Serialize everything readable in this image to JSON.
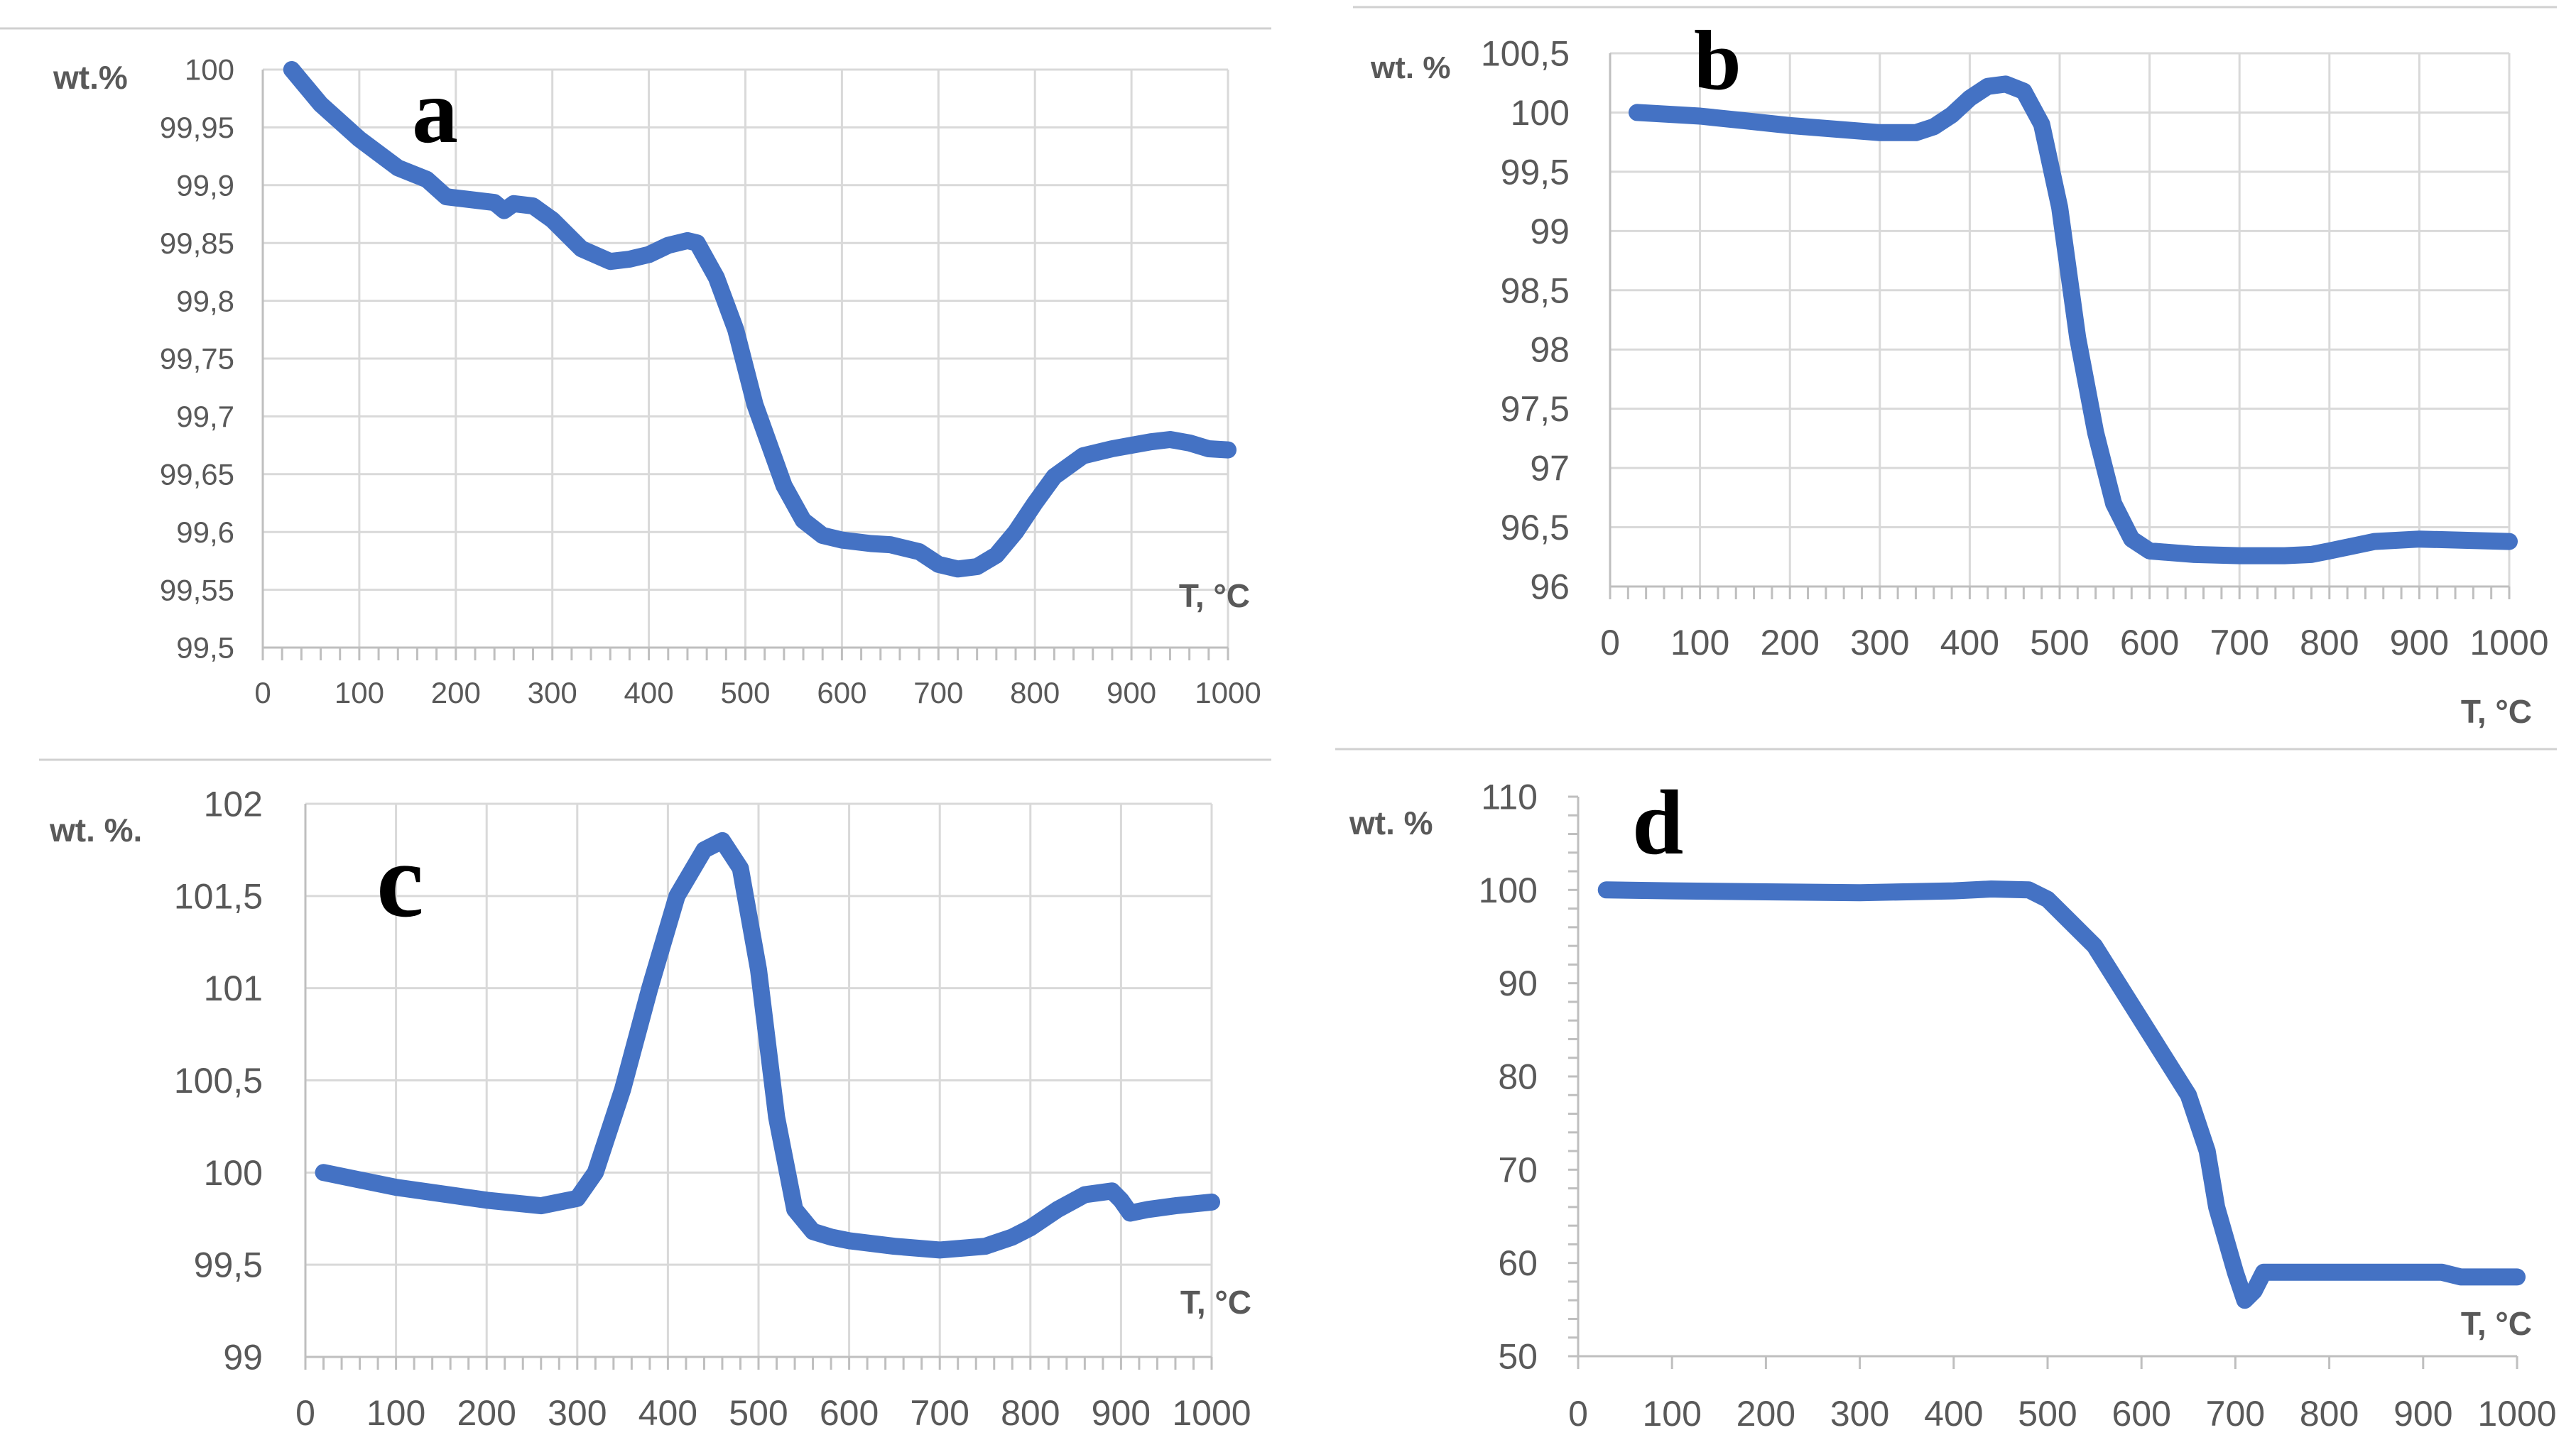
{
  "colors": {
    "series": "#4472C4",
    "grid": "#d9d9d9",
    "axis": "#bfbfbf",
    "text": "#595959",
    "separator": "#d0d0d0"
  },
  "chart_data": [
    {
      "panel": "a",
      "type": "line",
      "ylabel": "wt.%",
      "xlabel": "T, °C",
      "xlim": [
        0,
        1000
      ],
      "ylim": [
        99.5,
        100
      ],
      "xticks": [
        "0",
        "100",
        "200",
        "300",
        "400",
        "500",
        "600",
        "700",
        "800",
        "900",
        "1000"
      ],
      "yticks": [
        "99,5",
        "99,55",
        "99,6",
        "99,65",
        "99,7",
        "99,75",
        "99,8",
        "99,85",
        "99,9",
        "99,95",
        "100"
      ],
      "grid": "vertical and horizontal",
      "series": [
        {
          "x": [
            30,
            60,
            100,
            140,
            170,
            190,
            210,
            240,
            250,
            260,
            280,
            300,
            330,
            360,
            380,
            400,
            420,
            440,
            450,
            470,
            490,
            510,
            540,
            560,
            580,
            600,
            630,
            650,
            680,
            700,
            720,
            740,
            760,
            780,
            800,
            820,
            850,
            880,
            900,
            920,
            940,
            960,
            980,
            1000
          ],
          "values": [
            100,
            99.97,
            99.94,
            99.915,
            99.905,
            99.89,
            99.888,
            99.885,
            99.878,
            99.884,
            99.882,
            99.87,
            99.845,
            99.834,
            99.836,
            99.84,
            99.848,
            99.852,
            99.85,
            99.82,
            99.775,
            99.71,
            99.64,
            99.61,
            99.597,
            99.593,
            99.59,
            99.589,
            99.583,
            99.572,
            99.568,
            99.57,
            99.58,
            99.6,
            99.625,
            99.648,
            99.666,
            99.672,
            99.675,
            99.678,
            99.68,
            99.677,
            99.672,
            99.671
          ]
        }
      ]
    },
    {
      "panel": "b",
      "type": "line",
      "ylabel": "wt. %",
      "xlabel": "T, °C",
      "xlim": [
        0,
        1000
      ],
      "ylim": [
        96,
        100.5
      ],
      "xticks": [
        "0",
        "100",
        "200",
        "300",
        "400",
        "500",
        "600",
        "700",
        "800",
        "900",
        "1000"
      ],
      "yticks": [
        "96",
        "96,5",
        "97",
        "97,5",
        "98",
        "98,5",
        "99",
        "99,5",
        "100",
        "100,5"
      ],
      "grid": "vertical and horizontal",
      "series": [
        {
          "x": [
            30,
            100,
            150,
            200,
            250,
            300,
            340,
            360,
            380,
            400,
            420,
            440,
            460,
            480,
            500,
            520,
            540,
            560,
            580,
            600,
            650,
            700,
            750,
            780,
            800,
            850,
            900,
            950,
            1000
          ],
          "values": [
            100,
            99.97,
            99.93,
            99.89,
            99.86,
            99.83,
            99.83,
            99.88,
            99.98,
            100.12,
            100.22,
            100.24,
            100.18,
            99.9,
            99.2,
            98.1,
            97.3,
            96.7,
            96.4,
            96.3,
            96.27,
            96.26,
            96.26,
            96.27,
            96.3,
            96.38,
            96.4,
            96.39,
            96.38
          ]
        }
      ]
    },
    {
      "panel": "c",
      "type": "line",
      "ylabel": "wt. %.",
      "xlabel": "T, °C",
      "xlim": [
        0,
        1000
      ],
      "ylim": [
        99,
        102
      ],
      "xticks": [
        "0",
        "100",
        "200",
        "300",
        "400",
        "500",
        "600",
        "700",
        "800",
        "900",
        "1000"
      ],
      "yticks": [
        "99",
        "99,5",
        "100",
        "100,5",
        "101",
        "101,5",
        "102"
      ],
      "grid": "vertical and horizontal",
      "series": [
        {
          "x": [
            20,
            100,
            200,
            260,
            300,
            320,
            350,
            380,
            410,
            440,
            460,
            480,
            500,
            520,
            540,
            560,
            580,
            600,
            650,
            700,
            750,
            780,
            800,
            830,
            860,
            890,
            900,
            910,
            930,
            960,
            1000
          ],
          "values": [
            100,
            99.92,
            99.85,
            99.82,
            99.86,
            100,
            100.45,
            101,
            101.5,
            101.75,
            101.8,
            101.65,
            101.1,
            100.3,
            99.8,
            99.68,
            99.65,
            99.63,
            99.6,
            99.58,
            99.6,
            99.65,
            99.7,
            99.8,
            99.88,
            99.9,
            99.85,
            99.78,
            99.8,
            99.82,
            99.84
          ]
        }
      ]
    },
    {
      "panel": "d",
      "type": "line",
      "ylabel": "wt. %",
      "xlabel": "T, °C",
      "xlim": [
        0,
        1000
      ],
      "ylim": [
        50,
        110
      ],
      "xticks": [
        "0",
        "100",
        "200",
        "300",
        "400",
        "500",
        "600",
        "700",
        "800",
        "900",
        "1000"
      ],
      "yticks": [
        "50",
        "60",
        "70",
        "80",
        "90",
        "100",
        "110"
      ],
      "grid": "none",
      "series": [
        {
          "x": [
            30,
            100,
            200,
            300,
            400,
            440,
            480,
            500,
            520,
            550,
            600,
            650,
            670,
            680,
            700,
            710,
            720,
            730,
            800,
            900,
            920,
            940,
            1000
          ],
          "values": [
            100,
            99.9,
            99.8,
            99.7,
            99.9,
            100.1,
            100,
            99,
            97,
            94,
            86,
            78,
            72,
            66,
            59,
            56,
            57,
            59,
            59,
            59,
            59,
            58.5,
            58.5
          ]
        }
      ]
    }
  ]
}
